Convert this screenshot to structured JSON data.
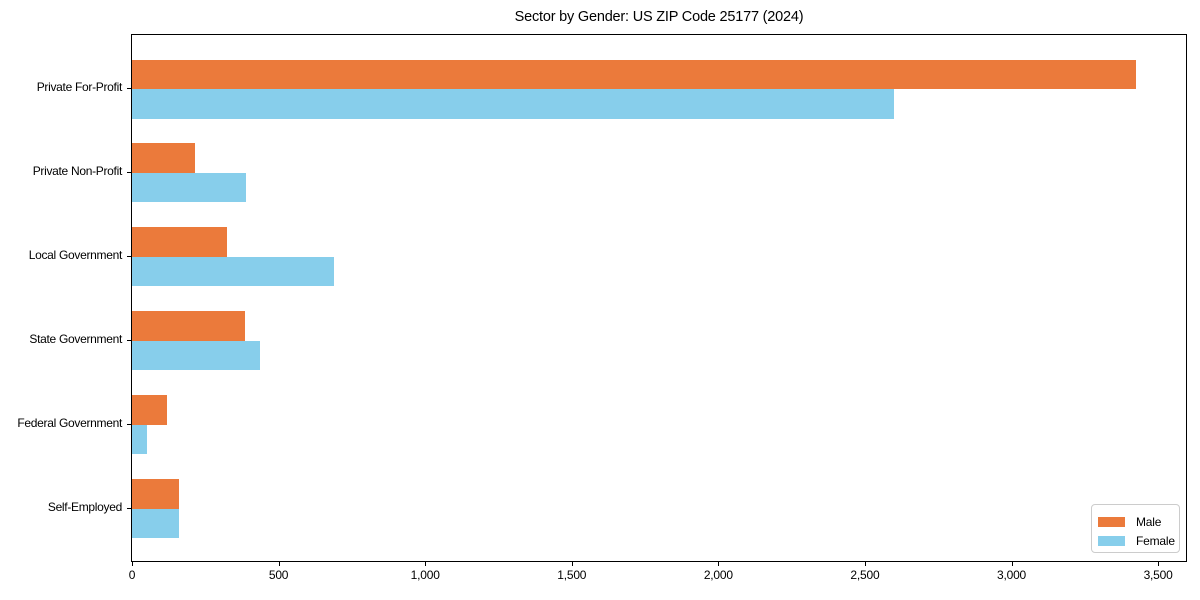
{
  "chart_data": {
    "type": "bar",
    "orientation": "horizontal",
    "title": "Sector by Gender: US ZIP Code 25177 (2024)",
    "categories": [
      "Private For-Profit",
      "Private Non-Profit",
      "Local Government",
      "State Government",
      "Federal Government",
      "Self-Employed"
    ],
    "series": [
      {
        "name": "Male",
        "color": "#EB7A3B",
        "values": [
          3425,
          215,
          325,
          385,
          120,
          160
        ]
      },
      {
        "name": "Female",
        "color": "#87CEEB",
        "values": [
          2600,
          390,
          690,
          435,
          50,
          160
        ]
      }
    ],
    "xlabel": "",
    "ylabel": "",
    "xlim": [
      0,
      3602
    ],
    "x_ticks": [
      0,
      500,
      1000,
      1500,
      2000,
      2500,
      3000,
      3500
    ],
    "x_tick_labels": [
      "0",
      "500",
      "1,000",
      "1,500",
      "2,000",
      "2,500",
      "3,000",
      "3,500"
    ],
    "grid": false,
    "legend": {
      "position": "lower right"
    },
    "colors": {
      "axis": "#000000",
      "background": "#ffffff",
      "legend_border": "#cccccc"
    }
  }
}
